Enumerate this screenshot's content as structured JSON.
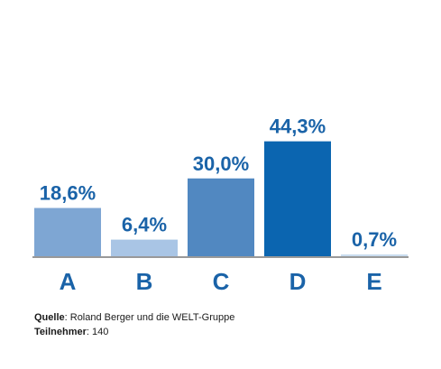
{
  "chart_data": {
    "type": "bar",
    "categories": [
      "A",
      "B",
      "C",
      "D",
      "E"
    ],
    "values": [
      18.6,
      6.4,
      30.0,
      44.3,
      0.7
    ],
    "data_labels": [
      "18,6%",
      "6,4%",
      "30,0%",
      "44,3%",
      "0,7%"
    ],
    "colors": [
      "#7ea6d3",
      "#a9c5e5",
      "#5188c1",
      "#0b65b0",
      "#c9dcef"
    ],
    "ylim": [
      0,
      50
    ],
    "grid": false,
    "legend": "none"
  },
  "footer": {
    "source_label": "Quelle",
    "source_text": "Roland Berger und die WELT-Gruppe",
    "participants_label": "Teilnehmer",
    "participants_text": "140"
  },
  "style": {
    "label_color": "#1a63a8",
    "baseline_color": "#333333"
  }
}
